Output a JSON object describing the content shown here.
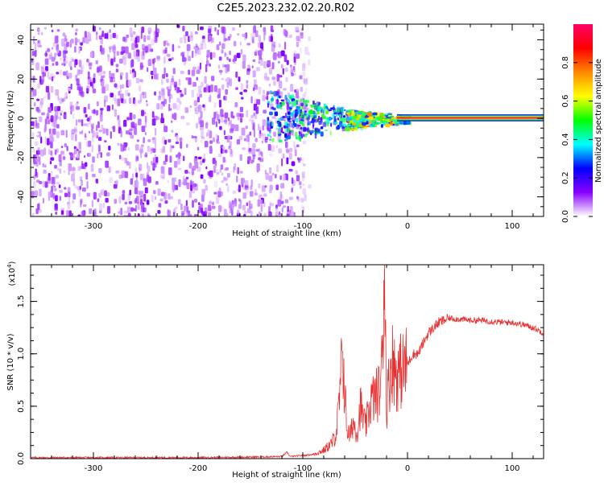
{
  "title": "C2E5.2023.232.02.20.R02",
  "chart_data": [
    {
      "type": "heatmap",
      "xlabel": "Height of straight line (km)",
      "ylabel": "Frequency (Hz)",
      "xlim": [
        -360,
        130
      ],
      "ylim": [
        -50,
        48
      ],
      "x_ticks": [
        "-300",
        "-200",
        "-100",
        "0",
        "100"
      ],
      "x_tick_values": [
        -300,
        -200,
        -100,
        0,
        100
      ],
      "y_ticks": [
        "-40",
        "-20",
        "0",
        "20",
        "40"
      ],
      "y_tick_values": [
        -40,
        -20,
        0,
        20,
        40
      ],
      "colorbar": {
        "label": "Normalized spectral amplitude",
        "range": [
          0,
          1
        ],
        "ticks": [
          "0.0",
          "0.2",
          "0.4",
          "0.6",
          "0.8"
        ],
        "tick_values": [
          0,
          0.2,
          0.4,
          0.6,
          0.8
        ],
        "colors": [
          "#ffffff",
          "#8800ff",
          "#0000ff",
          "#00ffff",
          "#00ff00",
          "#ffff00",
          "#ff8800",
          "#ff0000",
          "#ff0066"
        ]
      },
      "regions": [
        {
          "x_range": [
            -360,
            -95
          ],
          "f_range": [
            -50,
            48
          ],
          "amplitude": 0.08
        },
        {
          "x_range": [
            -135,
            -40
          ],
          "f_range": [
            -12,
            16
          ],
          "amplitude": 0.25
        },
        {
          "x_range": [
            -60,
            0
          ],
          "f_range": [
            -5,
            5
          ],
          "amplitude": 0.45
        },
        {
          "x_range": [
            0,
            130
          ],
          "f_range": [
            -1.5,
            1.5
          ],
          "amplitude": 0.75
        }
      ]
    },
    {
      "type": "line",
      "xlabel": "Height of straight line (km)",
      "ylabel": "SNR (10 * v/v)",
      "y_scale_label": "(x10",
      "y_scale_exp": "4",
      "y_scale_close": ")",
      "xlim": [
        -360,
        130
      ],
      "ylim": [
        0,
        1.85
      ],
      "x_ticks": [
        "-300",
        "-200",
        "-100",
        "0",
        "100"
      ],
      "x_tick_values": [
        -300,
        -200,
        -100,
        0,
        100
      ],
      "y_ticks": [
        "0.0",
        "0.5",
        "1.0",
        "1.5"
      ],
      "y_tick_values": [
        0,
        0.5,
        1.0,
        1.5
      ],
      "series": [
        {
          "color": "#e83030",
          "x": [
            -360,
            -300,
            -200,
            -150,
            -120,
            -115,
            -112,
            -100,
            -90,
            -80,
            -72,
            -68,
            -65,
            -62,
            -58,
            -55,
            -52,
            -48,
            -45,
            -40,
            -35,
            -30,
            -27,
            -25,
            -22,
            -20,
            -18,
            -15,
            -10,
            -5,
            0,
            5,
            10,
            15,
            20,
            30,
            40,
            50,
            60,
            70,
            80,
            90,
            100,
            110,
            120,
            130
          ],
          "y": [
            0.01,
            0.01,
            0.01,
            0.015,
            0.02,
            0.06,
            0.02,
            0.03,
            0.04,
            0.08,
            0.15,
            0.25,
            0.55,
            1.0,
            0.3,
            0.2,
            0.35,
            0.25,
            0.5,
            0.3,
            0.55,
            0.6,
            0.65,
            0.75,
            1.85,
            0.5,
            0.7,
            0.95,
            0.8,
            0.85,
            0.9,
            1.0,
            1.0,
            1.1,
            1.2,
            1.3,
            1.34,
            1.33,
            1.32,
            1.32,
            1.31,
            1.3,
            1.3,
            1.28,
            1.25,
            1.2
          ]
        }
      ]
    }
  ]
}
